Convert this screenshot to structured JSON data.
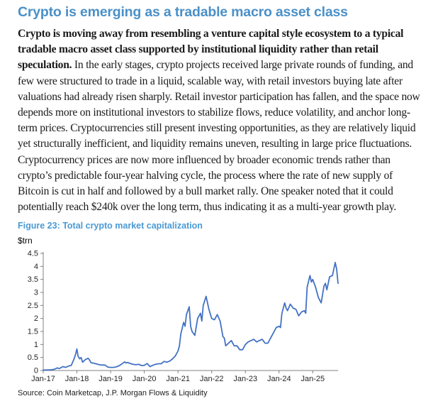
{
  "article": {
    "title": "Crypto is emerging as a tradable macro asset class",
    "lead_bold": "Crypto is moving away from resembling a venture capital style ecosystem to a typical tradable macro asset class supported by institutional liquidity rather than retail speculation.",
    "body_text": " In the early stages, crypto projects received large private rounds of funding, and few were structured to trade in a liquid, scalable way, with retail investors buying late after valuations had already risen sharply. Retail investor participation has fallen, and the space now depends more on institutional investors to stabilize flows, reduce volatility, and anchor long-term prices. Cryptocurrencies still present investing opportunities, as they are relatively liquid yet structurally inefficient, and liquidity remains uneven, resulting in large price fluctuations. Cryptocurrency prices are now more influenced by broader economic trends rather than crypto’s predictable four-year halving cycle, the process where the rate of new supply of Bitcoin is cut in half and followed by a bull market rally. One speaker noted that it could potentially reach $240k over the long term, thus indicating it as a multi-year growth play."
  },
  "figure": {
    "caption": "Figure 23: Total crypto market capitalization",
    "unit_label": "$trn",
    "source": "Source: Coin Marketcap, J.P. Morgan Flows & Liquidity"
  },
  "theme": {
    "heading_color": "#4a90c8",
    "caption_color": "#4a9ad4",
    "body_text_color": "#1a1a1a",
    "line_color": "#4472c4",
    "axis_color": "#808080",
    "tick_label_color": "#262626"
  },
  "chart_data": {
    "type": "line",
    "title": "Total crypto market capitalization",
    "ylabel": "$trn",
    "xlabel": "",
    "ylim": [
      0,
      4.5
    ],
    "yticks": [
      0,
      0.5,
      1,
      1.5,
      2,
      2.5,
      3,
      3.5,
      4,
      4.5
    ],
    "xtick_labels": [
      "Jan-17",
      "Jan-18",
      "Jan-19",
      "Jan-20",
      "Jan-21",
      "Jan-22",
      "Jan-23",
      "Jan-24",
      "Jan-25"
    ],
    "xtick_months": [
      0,
      12,
      24,
      36,
      48,
      60,
      72,
      84,
      96
    ],
    "x_unit": "months since Jan-2017",
    "grid": false,
    "legend": "none",
    "series": [
      {
        "name": "Total crypto market capitalization ($trn)",
        "points": [
          [
            0,
            0.02
          ],
          [
            1,
            0.02
          ],
          [
            2,
            0.025
          ],
          [
            3,
            0.03
          ],
          [
            4,
            0.05
          ],
          [
            5,
            0.1
          ],
          [
            5.5,
            0.08
          ],
          [
            6,
            0.09
          ],
          [
            7,
            0.15
          ],
          [
            8,
            0.12
          ],
          [
            9,
            0.17
          ],
          [
            10,
            0.2
          ],
          [
            11,
            0.45
          ],
          [
            11.5,
            0.62
          ],
          [
            12,
            0.83
          ],
          [
            12.4,
            0.55
          ],
          [
            13,
            0.45
          ],
          [
            13.5,
            0.5
          ],
          [
            14,
            0.32
          ],
          [
            15,
            0.42
          ],
          [
            16,
            0.47
          ],
          [
            16.5,
            0.4
          ],
          [
            17,
            0.3
          ],
          [
            18,
            0.28
          ],
          [
            19,
            0.25
          ],
          [
            20,
            0.22
          ],
          [
            21,
            0.21
          ],
          [
            22,
            0.21
          ],
          [
            23,
            0.13
          ],
          [
            24,
            0.12
          ],
          [
            25,
            0.12
          ],
          [
            26,
            0.14
          ],
          [
            27,
            0.18
          ],
          [
            28,
            0.25
          ],
          [
            29,
            0.33
          ],
          [
            29.5,
            0.29
          ],
          [
            30,
            0.31
          ],
          [
            31,
            0.27
          ],
          [
            32,
            0.24
          ],
          [
            33,
            0.22
          ],
          [
            34,
            0.24
          ],
          [
            35,
            0.19
          ],
          [
            36,
            0.2
          ],
          [
            37,
            0.27
          ],
          [
            38,
            0.15
          ],
          [
            39,
            0.2
          ],
          [
            40,
            0.24
          ],
          [
            41,
            0.26
          ],
          [
            42,
            0.26
          ],
          [
            43,
            0.35
          ],
          [
            44,
            0.32
          ],
          [
            45,
            0.36
          ],
          [
            46,
            0.44
          ],
          [
            47,
            0.55
          ],
          [
            48,
            0.75
          ],
          [
            48.5,
            0.95
          ],
          [
            49,
            1.4
          ],
          [
            50,
            1.85
          ],
          [
            50.5,
            1.7
          ],
          [
            51,
            2.15
          ],
          [
            52,
            2.45
          ],
          [
            52.5,
            1.7
          ],
          [
            53,
            1.5
          ],
          [
            54,
            1.35
          ],
          [
            55,
            2.0
          ],
          [
            56,
            2.2
          ],
          [
            56.5,
            1.9
          ],
          [
            57,
            2.5
          ],
          [
            58,
            2.85
          ],
          [
            58.5,
            2.6
          ],
          [
            59,
            2.35
          ],
          [
            60,
            2.0
          ],
          [
            61,
            1.95
          ],
          [
            62,
            2.15
          ],
          [
            63,
            1.9
          ],
          [
            64,
            1.3
          ],
          [
            64.5,
            1.25
          ],
          [
            65,
            0.95
          ],
          [
            66,
            1.05
          ],
          [
            67,
            1.15
          ],
          [
            68,
            0.95
          ],
          [
            69,
            0.95
          ],
          [
            70,
            0.8
          ],
          [
            71,
            0.8
          ],
          [
            72,
            1.0
          ],
          [
            73,
            1.1
          ],
          [
            74,
            1.15
          ],
          [
            75,
            1.2
          ],
          [
            76,
            1.1
          ],
          [
            77,
            1.15
          ],
          [
            78,
            1.2
          ],
          [
            79,
            1.05
          ],
          [
            80,
            1.05
          ],
          [
            81,
            1.25
          ],
          [
            82,
            1.45
          ],
          [
            83,
            1.65
          ],
          [
            84,
            1.7
          ],
          [
            84.5,
            1.65
          ],
          [
            85,
            2.2
          ],
          [
            86,
            2.6
          ],
          [
            86.5,
            2.4
          ],
          [
            87,
            2.3
          ],
          [
            88,
            2.55
          ],
          [
            89,
            2.4
          ],
          [
            90,
            2.35
          ],
          [
            91,
            2.1
          ],
          [
            92,
            2.25
          ],
          [
            93,
            2.3
          ],
          [
            93.5,
            2.2
          ],
          [
            94,
            3.2
          ],
          [
            95,
            3.65
          ],
          [
            95.5,
            3.4
          ],
          [
            96,
            3.5
          ],
          [
            96.5,
            3.35
          ],
          [
            97,
            3.2
          ],
          [
            98,
            2.8
          ],
          [
            99,
            2.6
          ],
          [
            100,
            3.25
          ],
          [
            100.5,
            3.35
          ],
          [
            101,
            3.1
          ],
          [
            102,
            3.6
          ],
          [
            103,
            3.65
          ],
          [
            104,
            4.15
          ],
          [
            104.5,
            3.9
          ],
          [
            105,
            3.35
          ]
        ]
      }
    ]
  }
}
